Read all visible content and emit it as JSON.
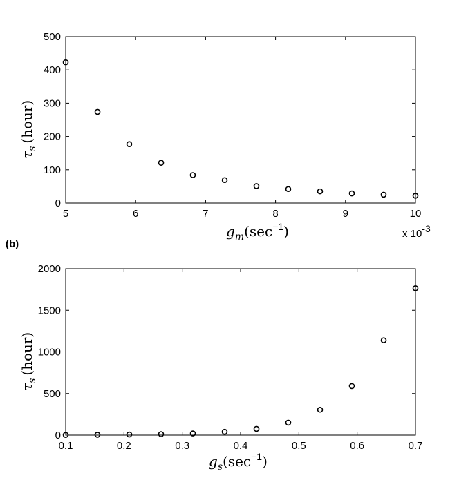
{
  "chart_data": [
    {
      "type": "scatter",
      "xlabel": "g_m(sec^-1)",
      "xlabel_main": "g",
      "xlabel_sub": "m",
      "xlabel_unit": "(sec",
      "xlabel_exp": "−1",
      "xlabel_close": ")",
      "ylabel_main": "τ",
      "ylabel_sub": "s",
      "ylabel_unit": "(hour)",
      "x_multiplier": "x 10",
      "x_multiplier_exp": "-3",
      "xlim": [
        5,
        10
      ],
      "ylim": [
        0,
        500
      ],
      "xticks": [
        5,
        6,
        7,
        8,
        9,
        10
      ],
      "yticks": [
        0,
        100,
        200,
        300,
        400,
        500
      ],
      "x": [
        5.0,
        5.455,
        5.909,
        6.364,
        6.818,
        7.273,
        7.727,
        8.182,
        8.636,
        9.091,
        9.545,
        10.0
      ],
      "y": [
        423,
        274,
        177,
        121,
        84,
        69,
        51,
        42,
        35,
        29,
        25,
        22
      ]
    },
    {
      "type": "scatter",
      "panel_label": "(b)",
      "xlabel": "g_s(sec^-1)",
      "xlabel_main": "g",
      "xlabel_sub": "s",
      "xlabel_unit": "(sec",
      "xlabel_exp": "−1",
      "xlabel_close": ")",
      "ylabel_main": "τ",
      "ylabel_sub": "s",
      "ylabel_unit": "(hour)",
      "xlim": [
        0.1,
        0.7
      ],
      "ylim": [
        0,
        2000
      ],
      "xticks": [
        0.1,
        0.2,
        0.3,
        0.4,
        0.5,
        0.6,
        0.7
      ],
      "xtick_labels": [
        "0.1",
        "0.2",
        "0.3",
        "0.4",
        "0.5",
        "0.6",
        "0.7"
      ],
      "yticks": [
        0,
        500,
        1000,
        1500,
        2000
      ],
      "x": [
        0.1,
        0.1545,
        0.2091,
        0.2636,
        0.3182,
        0.3727,
        0.4273,
        0.4818,
        0.5364,
        0.5909,
        0.6455,
        0.7
      ],
      "y": [
        3,
        5,
        8,
        12,
        20,
        40,
        75,
        150,
        305,
        590,
        1140,
        1765
      ]
    }
  ]
}
